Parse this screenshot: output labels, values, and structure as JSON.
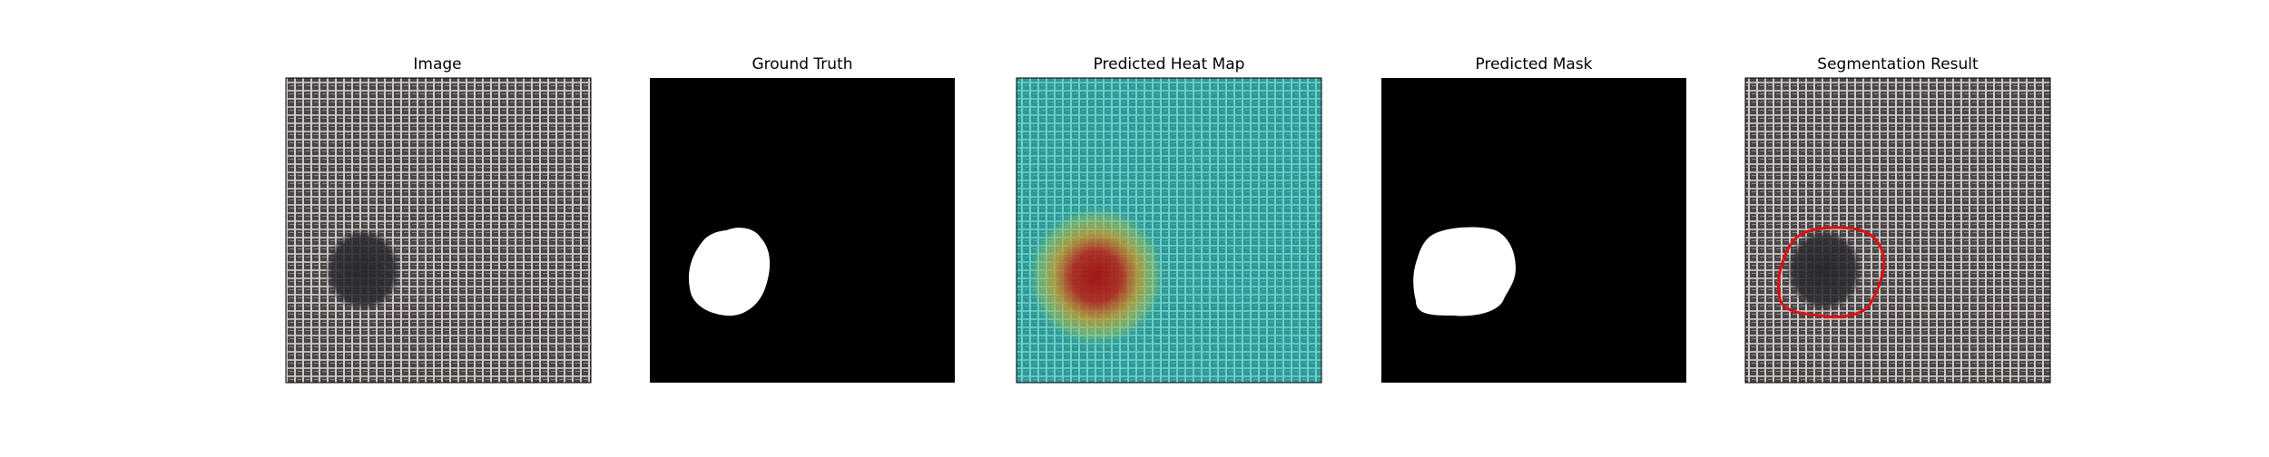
{
  "panels": [
    {
      "id": "image",
      "title": "Image"
    },
    {
      "id": "ground-truth",
      "title": "Ground Truth"
    },
    {
      "id": "heatmap",
      "title": "Predicted Heat Map"
    },
    {
      "id": "mask",
      "title": "Predicted Mask"
    },
    {
      "id": "segmentation",
      "title": "Segmentation Result"
    }
  ],
  "colors": {
    "background": "#ffffff",
    "fabric_dark": "#4a4648",
    "fabric_light": "#bdb5b3",
    "defect": "#2a2a30",
    "mask_fill": "#ffffff",
    "mask_background": "#000000",
    "heat_low": "#3aa8a8",
    "heat_high": "#b01010",
    "contour": "#e01010"
  }
}
